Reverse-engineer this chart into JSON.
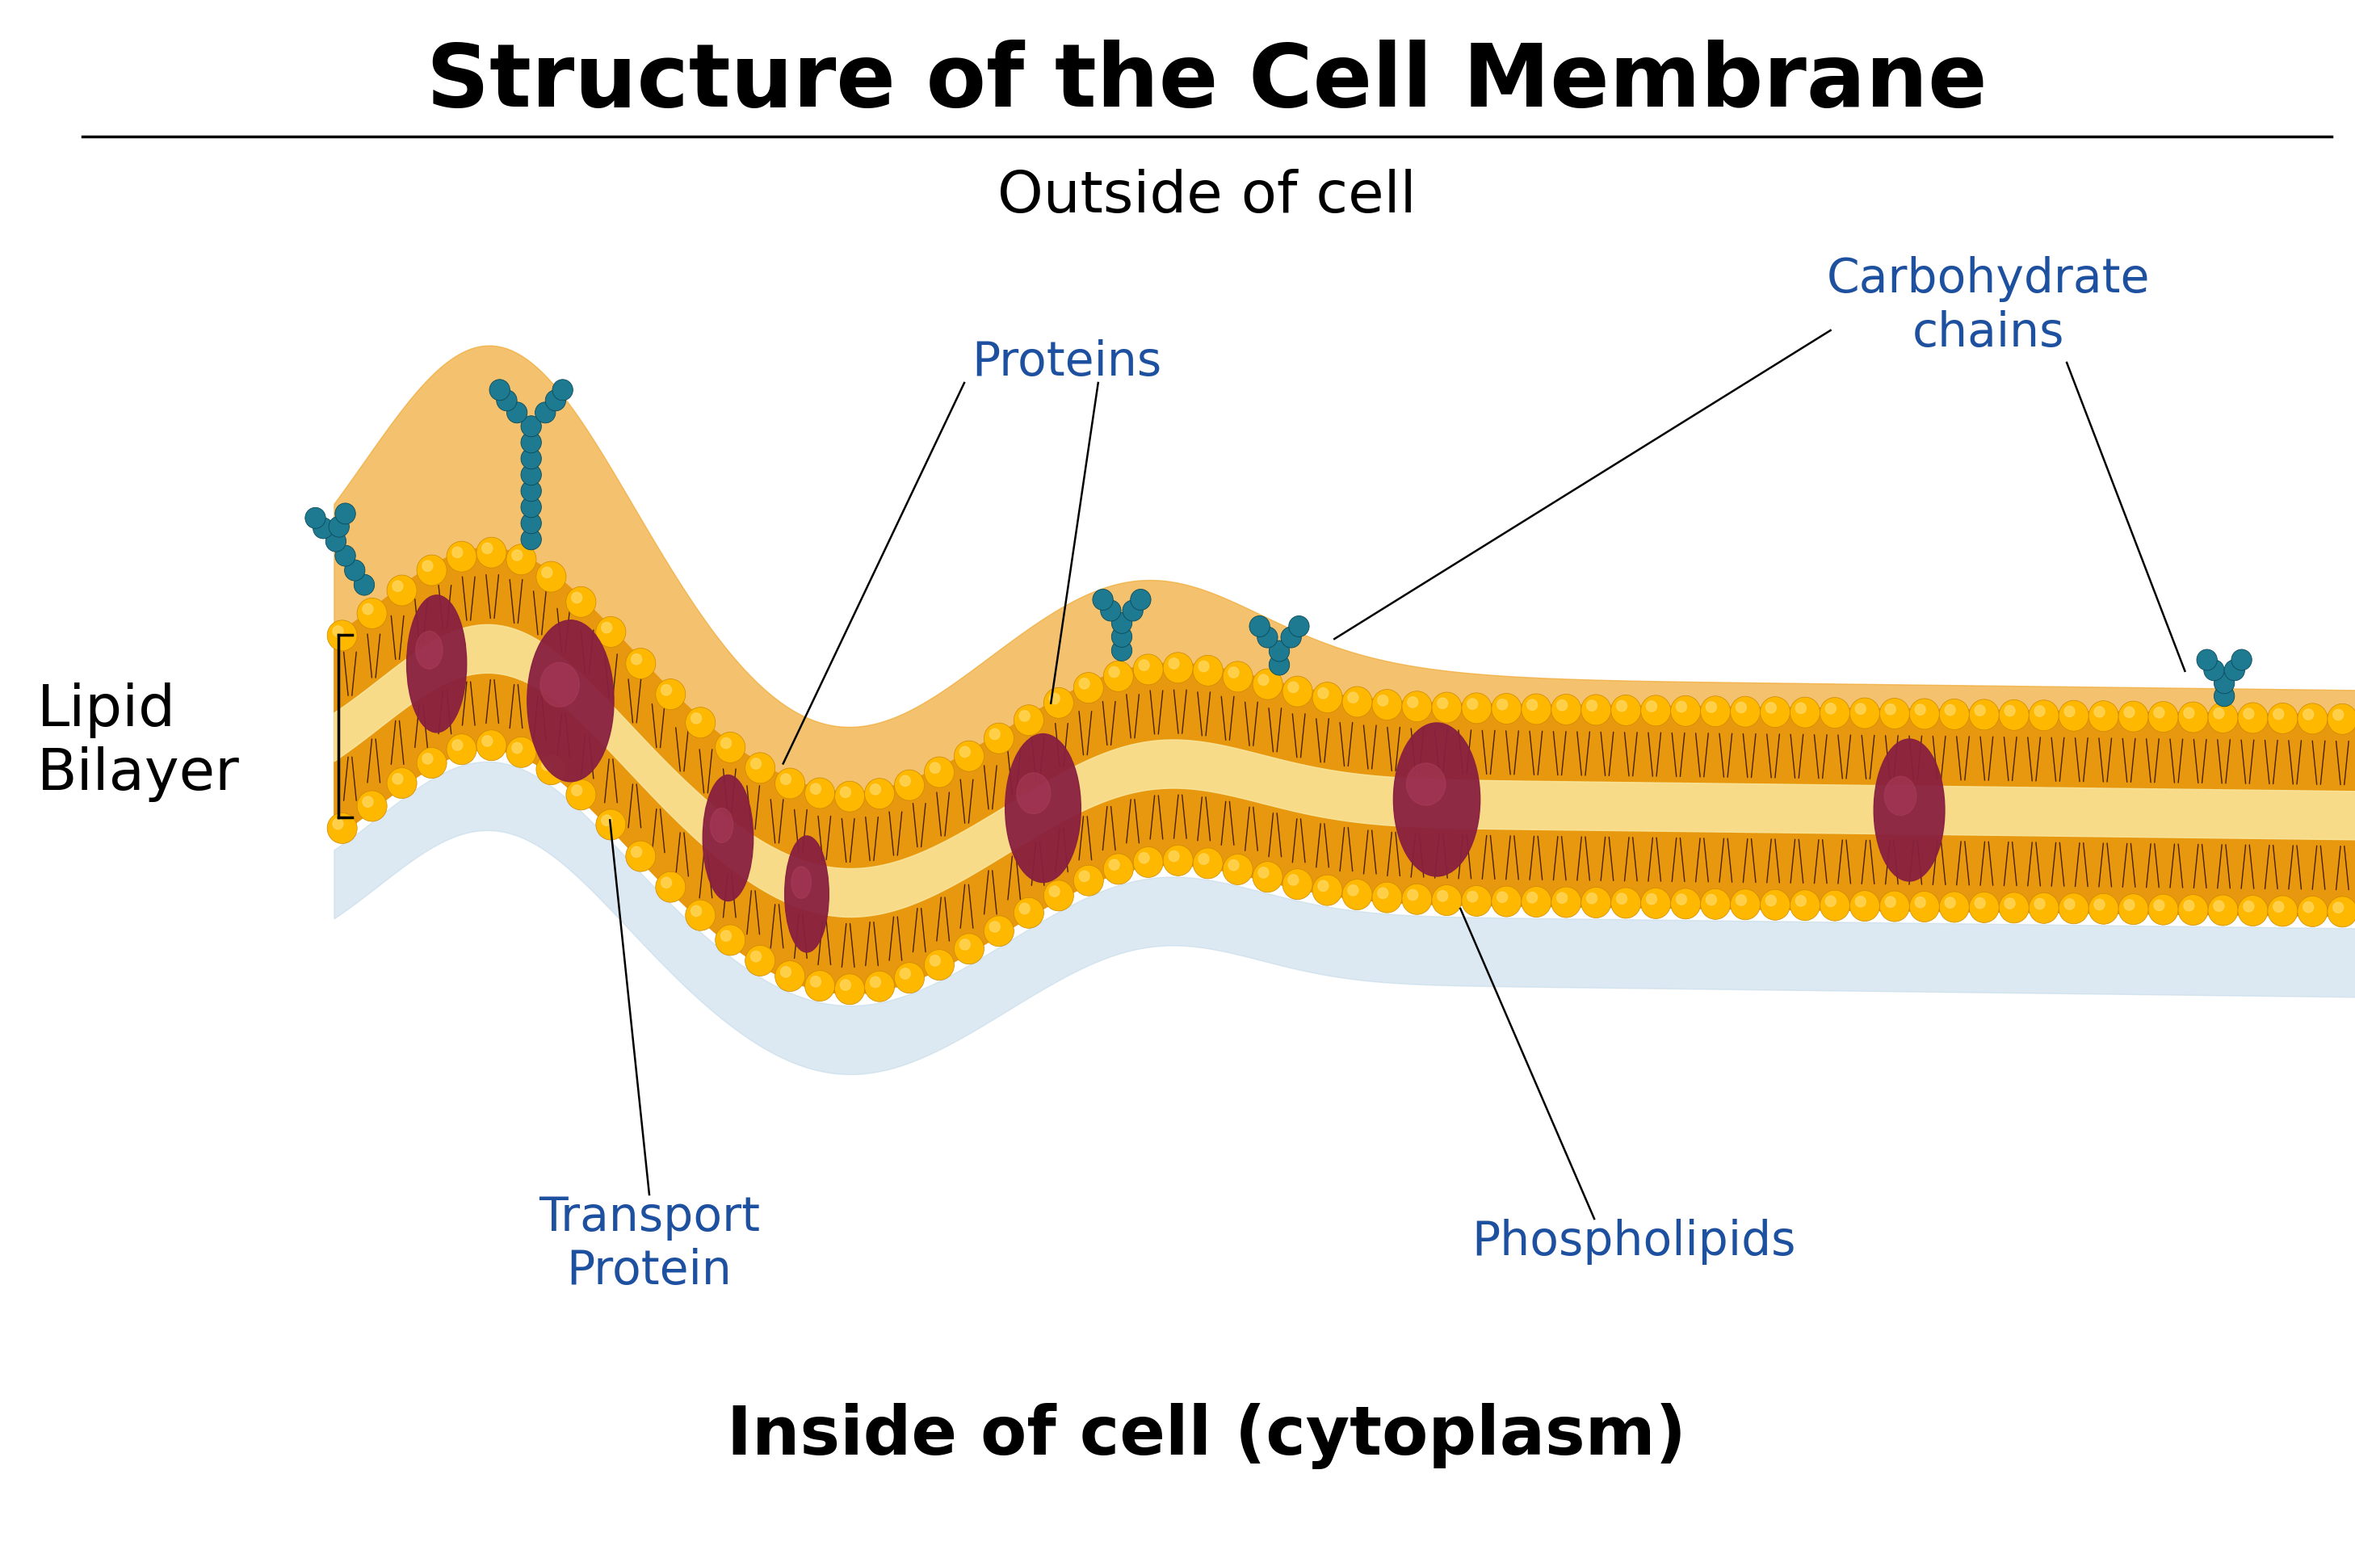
{
  "title": "Structure of the Cell Membrane",
  "outside_label": "Outside of cell",
  "inside_label": "Inside of cell (cytoplasm)",
  "lipid_bilayer_label": "Lipid\nBilayer",
  "proteins_label": "Proteins",
  "transport_protein_label": "Transport\nProtein",
  "phospholipids_label": "Phospholipids",
  "carbohydrate_label": "Carbohydrate\nchains",
  "title_fontsize": 78,
  "outside_fontsize": 52,
  "inside_fontsize": 60,
  "lipid_fontsize": 52,
  "label_fontsize": 42,
  "bg_color": "#ffffff",
  "phospholipid_head_color": "#FFB800",
  "phospholipid_head_edge": "#CC8800",
  "phospholipid_head_highlight": "#FFD966",
  "tail_color": "#4A2000",
  "membrane_orange": "#E8960A",
  "outer_blob_color": "#F0B050",
  "inner_zone_color": "#F5DFA0",
  "protein_color": "#882040",
  "protein_highlight": "#B04060",
  "teal_color": "#1E7A90",
  "blue_label_color": "#1E50A0",
  "black_color": "#000000",
  "shadow_color": "#C0D8E8",
  "line_color": "#000000",
  "bracket_color": "#000000"
}
